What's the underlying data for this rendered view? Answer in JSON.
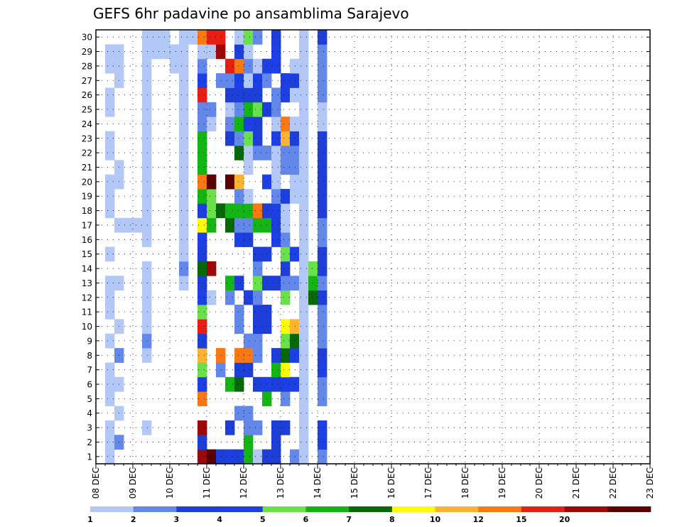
{
  "chart_data": {
    "type": "heatmap",
    "title": "GEFS 6hr padavine po ansamblima Sarajevo",
    "y_axis": {
      "min": 1,
      "max": 30,
      "ticks": [
        1,
        2,
        3,
        4,
        5,
        6,
        7,
        8,
        9,
        10,
        11,
        12,
        13,
        14,
        15,
        16,
        17,
        18,
        19,
        20,
        21,
        22,
        23,
        24,
        25,
        26,
        27,
        28,
        29,
        30
      ]
    },
    "x_axis": {
      "ticks": [
        "08 DEC",
        "09 DEC",
        "10 DEC",
        "11 DEC",
        "12 DEC",
        "13 DEC",
        "14 DEC",
        "15 DEC",
        "16 DEC",
        "17 DEC",
        "18 DEC",
        "19 DEC",
        "20 DEC",
        "21 DEC",
        "22 DEC",
        "23 DEC"
      ],
      "steps_per_day": 4
    },
    "grid": "dotted",
    "colorbar": {
      "labels": [
        "1",
        "2",
        "3",
        "4",
        "5",
        "6",
        "7",
        "8",
        "10",
        "12",
        "15",
        "20"
      ],
      "colors": [
        "#b4c8f8",
        "#6488ea",
        "#1e3ed8",
        "#1c40e4",
        "#6ae04a",
        "#14b414",
        "#086808",
        "#fafa0a",
        "#fab432",
        "#fa7814",
        "#e61e14",
        "#9b0a0a",
        "#5a0000"
      ]
    },
    "cells": [
      [
        1,
        1,
        0
      ],
      [
        2,
        1,
        0
      ],
      [
        3,
        1,
        0
      ],
      [
        5,
        1,
        0
      ],
      [
        6,
        1,
        0
      ],
      [
        7,
        1,
        0
      ],
      [
        9,
        1,
        0
      ],
      [
        11,
        1,
        0
      ],
      [
        12,
        1,
        0
      ],
      [
        13,
        1,
        0
      ],
      [
        15,
        1,
        0
      ],
      [
        18,
        1,
        0
      ],
      [
        19,
        1,
        0
      ],
      [
        20,
        1,
        0
      ],
      [
        22,
        1,
        0
      ],
      [
        23,
        1,
        0
      ],
      [
        25,
        1,
        0
      ],
      [
        26,
        1,
        0
      ],
      [
        28,
        1,
        0
      ],
      [
        29,
        1,
        0
      ],
      [
        2,
        2,
        1
      ],
      [
        4,
        2,
        0
      ],
      [
        6,
        2,
        0
      ],
      [
        8,
        2,
        1
      ],
      [
        10,
        2,
        0
      ],
      [
        13,
        2,
        0
      ],
      [
        17,
        2,
        0
      ],
      [
        17,
        3,
        0
      ],
      [
        17,
        4,
        0
      ],
      [
        20,
        2,
        0
      ],
      [
        21,
        2,
        0
      ],
      [
        27,
        2,
        0
      ],
      [
        28,
        2,
        0
      ],
      [
        29,
        2,
        0
      ],
      [
        3,
        5,
        0
      ],
      [
        8,
        5,
        0
      ],
      [
        9,
        5,
        1
      ],
      [
        10,
        5,
        0
      ],
      [
        11,
        5,
        0
      ],
      [
        12,
        5,
        0
      ],
      [
        13,
        5,
        0
      ],
      [
        14,
        5,
        0
      ],
      [
        16,
        5,
        0
      ],
      [
        17,
        5,
        0
      ],
      [
        18,
        5,
        0
      ],
      [
        19,
        5,
        0
      ],
      [
        20,
        5,
        0
      ],
      [
        21,
        5,
        0
      ],
      [
        22,
        5,
        0
      ],
      [
        23,
        5,
        0
      ],
      [
        24,
        5,
        0
      ],
      [
        25,
        5,
        0
      ],
      [
        26,
        5,
        0
      ],
      [
        27,
        5,
        0
      ],
      [
        28,
        5,
        0
      ],
      [
        29,
        5,
        0
      ],
      [
        30,
        5,
        0
      ],
      [
        29,
        6,
        0
      ],
      [
        30,
        6,
        0
      ],
      [
        29,
        7,
        0
      ],
      [
        30,
        7,
        0
      ],
      [
        28,
        8,
        0
      ],
      [
        29,
        8,
        0
      ],
      [
        13,
        9,
        0
      ],
      [
        14,
        9,
        1
      ],
      [
        15,
        9,
        0
      ],
      [
        16,
        9,
        0
      ],
      [
        17,
        9,
        0
      ],
      [
        18,
        9,
        0
      ],
      [
        19,
        9,
        0
      ],
      [
        20,
        9,
        0
      ],
      [
        21,
        9,
        0
      ],
      [
        22,
        9,
        0
      ],
      [
        23,
        9,
        0
      ],
      [
        24,
        9,
        0
      ],
      [
        25,
        9,
        0
      ],
      [
        26,
        9,
        0
      ],
      [
        27,
        9,
        0
      ],
      [
        28,
        9,
        0
      ],
      [
        29,
        9,
        0
      ],
      [
        30,
        9,
        0
      ],
      [
        30,
        10,
        0
      ],
      [
        1,
        11,
        11
      ],
      [
        2,
        11,
        2
      ],
      [
        3,
        11,
        11
      ],
      [
        5,
        11,
        9
      ],
      [
        6,
        11,
        3
      ],
      [
        7,
        11,
        4
      ],
      [
        8,
        11,
        8
      ],
      [
        9,
        11,
        2
      ],
      [
        10,
        11,
        10
      ],
      [
        11,
        11,
        4
      ],
      [
        12,
        11,
        3
      ],
      [
        13,
        11,
        2
      ],
      [
        14,
        11,
        6
      ],
      [
        15,
        11,
        2
      ],
      [
        16,
        11,
        3
      ],
      [
        17,
        11,
        7
      ],
      [
        18,
        11,
        2
      ],
      [
        19,
        11,
        5
      ],
      [
        20,
        11,
        9
      ],
      [
        21,
        11,
        5
      ],
      [
        22,
        11,
        5
      ],
      [
        23,
        11,
        5
      ],
      [
        24,
        11,
        1
      ],
      [
        25,
        11,
        1
      ],
      [
        26,
        11,
        10
      ],
      [
        27,
        11,
        3
      ],
      [
        28,
        11,
        1
      ],
      [
        29,
        11,
        0
      ],
      [
        30,
        11,
        9
      ],
      [
        1,
        12,
        12
      ],
      [
        12,
        12,
        0
      ],
      [
        14,
        12,
        11
      ],
      [
        17,
        12,
        5
      ],
      [
        18,
        12,
        4
      ],
      [
        19,
        12,
        4
      ],
      [
        20,
        12,
        12
      ],
      [
        24,
        12,
        0
      ],
      [
        25,
        12,
        1
      ],
      [
        29,
        12,
        0
      ],
      [
        30,
        12,
        10
      ],
      [
        1,
        13,
        2
      ],
      [
        7,
        13,
        1
      ],
      [
        8,
        13,
        9
      ],
      [
        18,
        13,
        6
      ],
      [
        27,
        13,
        1
      ],
      [
        29,
        13,
        11
      ],
      [
        30,
        13,
        10
      ],
      [
        1,
        14,
        3
      ],
      [
        3,
        14,
        2
      ],
      [
        6,
        14,
        5
      ],
      [
        12,
        14,
        1
      ],
      [
        13,
        14,
        5
      ],
      [
        17,
        14,
        6
      ],
      [
        18,
        14,
        5
      ],
      [
        20,
        14,
        12
      ],
      [
        23,
        14,
        2
      ],
      [
        24,
        14,
        1
      ],
      [
        25,
        14,
        0
      ],
      [
        26,
        14,
        2
      ],
      [
        27,
        14,
        1
      ],
      [
        28,
        14,
        10
      ],
      [
        1,
        15,
        2
      ],
      [
        4,
        15,
        1
      ],
      [
        6,
        15,
        6
      ],
      [
        7,
        15,
        2
      ],
      [
        8,
        15,
        9
      ],
      [
        10,
        15,
        1
      ],
      [
        11,
        15,
        1
      ],
      [
        13,
        15,
        2
      ],
      [
        16,
        15,
        3
      ],
      [
        17,
        15,
        1
      ],
      [
        18,
        15,
        5
      ],
      [
        19,
        15,
        1
      ],
      [
        20,
        15,
        8
      ],
      [
        22,
        15,
        6
      ],
      [
        23,
        15,
        1
      ],
      [
        24,
        15,
        5
      ],
      [
        25,
        15,
        1
      ],
      [
        26,
        15,
        2
      ],
      [
        27,
        15,
        3
      ],
      [
        28,
        15,
        9
      ],
      [
        29,
        15,
        2
      ],
      [
        30,
        15,
        0
      ],
      [
        1,
        16,
        5
      ],
      [
        2,
        16,
        5
      ],
      [
        3,
        16,
        1
      ],
      [
        4,
        16,
        1
      ],
      [
        7,
        16,
        2
      ],
      [
        8,
        16,
        9
      ],
      [
        9,
        16,
        1
      ],
      [
        12,
        16,
        3
      ],
      [
        16,
        16,
        2
      ],
      [
        17,
        16,
        1
      ],
      [
        18,
        16,
        5
      ],
      [
        19,
        16,
        0
      ],
      [
        21,
        16,
        0
      ],
      [
        22,
        16,
        0
      ],
      [
        23,
        16,
        4
      ],
      [
        24,
        16,
        3
      ],
      [
        25,
        16,
        5
      ],
      [
        26,
        16,
        2
      ],
      [
        27,
        16,
        0
      ],
      [
        28,
        16,
        1
      ],
      [
        29,
        16,
        0
      ],
      [
        30,
        16,
        4
      ],
      [
        1,
        17,
        0
      ],
      [
        3,
        17,
        1
      ],
      [
        6,
        17,
        2
      ],
      [
        8,
        17,
        1
      ],
      [
        9,
        17,
        1
      ],
      [
        10,
        17,
        2
      ],
      [
        11,
        17,
        2
      ],
      [
        12,
        17,
        1
      ],
      [
        13,
        17,
        4
      ],
      [
        14,
        17,
        1
      ],
      [
        15,
        17,
        2
      ],
      [
        17,
        17,
        5
      ],
      [
        18,
        17,
        9
      ],
      [
        22,
        17,
        1
      ],
      [
        23,
        17,
        2
      ],
      [
        24,
        17,
        2
      ],
      [
        25,
        17,
        4
      ],
      [
        26,
        17,
        2
      ],
      [
        27,
        17,
        3
      ],
      [
        28,
        17,
        0
      ],
      [
        30,
        17,
        1
      ],
      [
        1,
        18,
        2
      ],
      [
        5,
        18,
        5
      ],
      [
        6,
        18,
        3
      ],
      [
        10,
        18,
        2
      ],
      [
        11,
        18,
        2
      ],
      [
        13,
        18,
        2
      ],
      [
        15,
        18,
        2
      ],
      [
        17,
        18,
        5
      ],
      [
        18,
        18,
        2
      ],
      [
        20,
        18,
        3
      ],
      [
        22,
        18,
        1
      ],
      [
        25,
        18,
        2
      ],
      [
        27,
        18,
        1
      ],
      [
        28,
        18,
        3
      ],
      [
        1,
        19,
        2
      ],
      [
        2,
        19,
        2
      ],
      [
        3,
        19,
        2
      ],
      [
        6,
        19,
        2
      ],
      [
        7,
        19,
        5
      ],
      [
        8,
        19,
        2
      ],
      [
        13,
        19,
        2
      ],
      [
        16,
        19,
        3
      ],
      [
        17,
        19,
        2
      ],
      [
        18,
        19,
        3
      ],
      [
        19,
        19,
        1
      ],
      [
        20,
        19,
        0
      ],
      [
        21,
        19,
        0
      ],
      [
        22,
        19,
        0
      ],
      [
        23,
        19,
        3
      ],
      [
        24,
        19,
        0
      ],
      [
        25,
        19,
        1
      ],
      [
        26,
        19,
        1
      ],
      [
        28,
        19,
        3
      ],
      [
        29,
        19,
        3
      ],
      [
        30,
        19,
        2
      ],
      [
        3,
        20,
        2
      ],
      [
        5,
        20,
        1
      ],
      [
        6,
        20,
        3
      ],
      [
        7,
        20,
        7
      ],
      [
        8,
        20,
        6
      ],
      [
        9,
        20,
        4
      ],
      [
        10,
        20,
        7
      ],
      [
        12,
        20,
        4
      ],
      [
        13,
        20,
        1
      ],
      [
        14,
        20,
        2
      ],
      [
        15,
        20,
        4
      ],
      [
        16,
        20,
        1
      ],
      [
        17,
        20,
        0
      ],
      [
        18,
        20,
        0
      ],
      [
        19,
        20,
        3
      ],
      [
        21,
        20,
        1
      ],
      [
        22,
        20,
        1
      ],
      [
        23,
        20,
        8
      ],
      [
        24,
        20,
        9
      ],
      [
        26,
        20,
        3
      ],
      [
        27,
        20,
        3
      ],
      [
        1,
        21,
        1
      ],
      [
        6,
        21,
        3
      ],
      [
        8,
        21,
        3
      ],
      [
        9,
        21,
        6
      ],
      [
        10,
        21,
        8
      ],
      [
        13,
        21,
        1
      ],
      [
        15,
        21,
        3
      ],
      [
        19,
        21,
        0
      ],
      [
        20,
        21,
        0
      ],
      [
        21,
        21,
        1
      ],
      [
        22,
        21,
        1
      ],
      [
        23,
        21,
        2
      ],
      [
        24,
        21,
        0
      ],
      [
        26,
        21,
        0
      ],
      [
        27,
        21,
        2
      ],
      [
        28,
        21,
        0
      ],
      [
        1,
        22,
        0
      ],
      [
        2,
        22,
        0
      ],
      [
        3,
        22,
        0
      ],
      [
        4,
        22,
        0
      ],
      [
        5,
        22,
        0
      ],
      [
        6,
        22,
        0
      ],
      [
        7,
        22,
        0
      ],
      [
        8,
        22,
        0
      ],
      [
        9,
        22,
        0
      ],
      [
        10,
        22,
        0
      ],
      [
        11,
        22,
        0
      ],
      [
        12,
        22,
        0
      ],
      [
        13,
        22,
        0
      ],
      [
        14,
        22,
        0
      ],
      [
        15,
        22,
        0
      ],
      [
        16,
        22,
        0
      ],
      [
        17,
        22,
        0
      ],
      [
        18,
        22,
        0
      ],
      [
        19,
        22,
        0
      ],
      [
        20,
        22,
        0
      ],
      [
        21,
        22,
        0
      ],
      [
        22,
        22,
        0
      ],
      [
        23,
        22,
        0
      ],
      [
        24,
        22,
        0
      ],
      [
        25,
        22,
        0
      ],
      [
        26,
        22,
        0
      ],
      [
        27,
        22,
        0
      ],
      [
        28,
        22,
        0
      ],
      [
        29,
        22,
        0
      ],
      [
        30,
        22,
        0
      ],
      [
        12,
        23,
        6
      ],
      [
        13,
        23,
        5
      ],
      [
        14,
        23,
        4
      ],
      [
        1,
        24,
        1
      ],
      [
        2,
        24,
        3
      ],
      [
        3,
        24,
        3
      ],
      [
        5,
        24,
        1
      ],
      [
        6,
        24,
        1
      ],
      [
        7,
        24,
        3
      ],
      [
        8,
        24,
        2
      ],
      [
        9,
        24,
        1
      ],
      [
        10,
        24,
        1
      ],
      [
        11,
        24,
        1
      ],
      [
        12,
        24,
        2
      ],
      [
        13,
        24,
        1
      ],
      [
        14,
        24,
        2
      ],
      [
        15,
        24,
        2
      ],
      [
        16,
        24,
        1
      ],
      [
        17,
        24,
        1
      ],
      [
        18,
        24,
        2
      ],
      [
        19,
        24,
        2
      ],
      [
        20,
        24,
        2
      ],
      [
        21,
        24,
        2
      ],
      [
        22,
        24,
        2
      ],
      [
        23,
        24,
        2
      ],
      [
        24,
        24,
        0
      ],
      [
        25,
        24,
        0
      ],
      [
        26,
        24,
        1
      ],
      [
        27,
        24,
        1
      ],
      [
        28,
        24,
        1
      ],
      [
        29,
        24,
        1
      ],
      [
        30,
        24,
        2
      ]
    ]
  }
}
